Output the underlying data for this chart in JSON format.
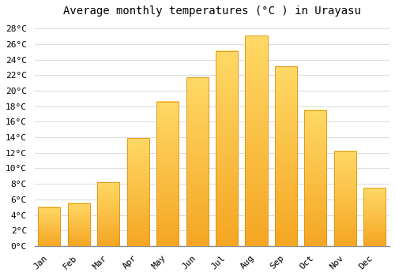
{
  "title": "Average monthly temperatures (°C ) in Urayasu",
  "months": [
    "Jan",
    "Feb",
    "Mar",
    "Apr",
    "May",
    "Jun",
    "Jul",
    "Aug",
    "Sep",
    "Oct",
    "Nov",
    "Dec"
  ],
  "temperatures": [
    5.0,
    5.5,
    8.2,
    13.9,
    18.6,
    21.7,
    25.1,
    27.1,
    23.1,
    17.5,
    12.2,
    7.5
  ],
  "bar_color_bottom": "#F5A623",
  "bar_color_top": "#FFD966",
  "bar_edge_color": "#E09010",
  "ylim": [
    0,
    29
  ],
  "ytick_interval": 2,
  "background_color": "#ffffff",
  "plot_bg_color": "#ffffff",
  "grid_color": "#dddddd",
  "title_fontsize": 10,
  "tick_fontsize": 8,
  "font_family": "monospace"
}
